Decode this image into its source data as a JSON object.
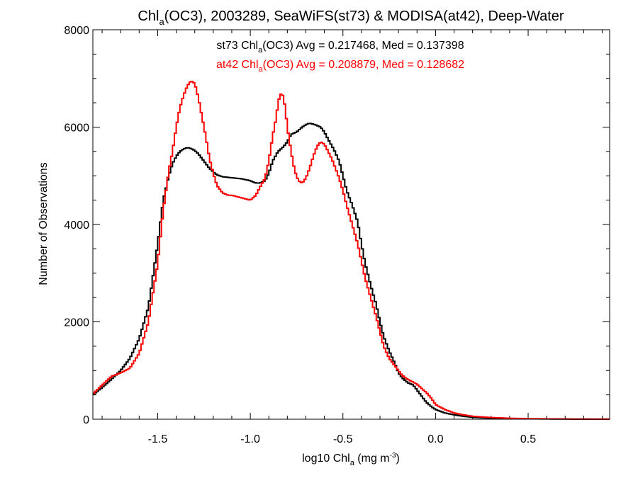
{
  "chart_data": {
    "type": "line",
    "title": {
      "a": "Chl",
      "sub": "a",
      "b": "(OC3), 2003289, SeaWiFS(st73) & MODISA(at42), Deep-Water"
    },
    "xlabel": {
      "a": "log10 Chl",
      "sub": "a",
      "b": " (mg m",
      "sup": "-3",
      "c": ")"
    },
    "ylabel": "Number of Observations",
    "xlim": [
      -1.85,
      0.94
    ],
    "ylim": [
      0,
      8000
    ],
    "x_ticks": [
      "-1.5",
      "-1.0",
      "-0.5",
      "0.0",
      "0.5"
    ],
    "y_ticks": [
      "0",
      "2000",
      "4000",
      "6000",
      "8000"
    ],
    "grid": false,
    "series": [
      {
        "name": "st73",
        "color": "#000000",
        "annotation": {
          "a": "st73 Chl",
          "sub": "a",
          "b": "(OC3) Avg = 0.217468, Med = 0.137398"
        },
        "x": [
          -1.85,
          -1.8,
          -1.75,
          -1.7,
          -1.65,
          -1.6,
          -1.55,
          -1.5,
          -1.47,
          -1.44,
          -1.42,
          -1.4,
          -1.38,
          -1.36,
          -1.34,
          -1.32,
          -1.3,
          -1.28,
          -1.26,
          -1.24,
          -1.22,
          -1.2,
          -1.18,
          -1.15,
          -1.1,
          -1.05,
          -1.0,
          -0.97,
          -0.95,
          -0.92,
          -0.9,
          -0.88,
          -0.85,
          -0.82,
          -0.8,
          -0.78,
          -0.75,
          -0.72,
          -0.7,
          -0.68,
          -0.65,
          -0.62,
          -0.6,
          -0.58,
          -0.55,
          -0.52,
          -0.5,
          -0.48,
          -0.45,
          -0.42,
          -0.4,
          -0.38,
          -0.35,
          -0.32,
          -0.3,
          -0.28,
          -0.25,
          -0.22,
          -0.2,
          -0.18,
          -0.15,
          -0.12,
          -0.1,
          -0.08,
          -0.05,
          -0.02,
          0.0,
          0.05,
          0.1,
          0.15,
          0.2,
          0.3,
          0.4,
          0.5,
          0.6,
          0.7,
          0.8,
          0.94
        ],
        "values": [
          500,
          650,
          820,
          1000,
          1250,
          1650,
          2300,
          3600,
          4500,
          5000,
          5250,
          5400,
          5500,
          5550,
          5580,
          5560,
          5520,
          5450,
          5350,
          5250,
          5150,
          5080,
          5020,
          4980,
          4960,
          4940,
          4900,
          4850,
          4850,
          4900,
          5050,
          5300,
          5500,
          5600,
          5700,
          5850,
          5900,
          6000,
          6050,
          6080,
          6050,
          6000,
          5900,
          5750,
          5550,
          5300,
          5000,
          4700,
          4400,
          4050,
          3600,
          3200,
          2750,
          2350,
          2000,
          1700,
          1400,
          1150,
          950,
          850,
          750,
          700,
          600,
          500,
          350,
          250,
          200,
          130,
          90,
          60,
          40,
          20,
          12,
          8,
          5,
          3,
          2,
          1
        ]
      },
      {
        "name": "at42",
        "color": "#ff0000",
        "annotation": {
          "a": "at42 Chl",
          "sub": "a",
          "b": "(OC3) Avg = 0.208879, Med = 0.128682"
        },
        "x": [
          -1.85,
          -1.8,
          -1.75,
          -1.7,
          -1.65,
          -1.6,
          -1.55,
          -1.5,
          -1.47,
          -1.44,
          -1.42,
          -1.4,
          -1.38,
          -1.36,
          -1.34,
          -1.32,
          -1.3,
          -1.28,
          -1.26,
          -1.24,
          -1.22,
          -1.2,
          -1.18,
          -1.15,
          -1.12,
          -1.1,
          -1.05,
          -1.0,
          -0.97,
          -0.95,
          -0.92,
          -0.9,
          -0.88,
          -0.86,
          -0.85,
          -0.84,
          -0.83,
          -0.82,
          -0.81,
          -0.8,
          -0.78,
          -0.76,
          -0.74,
          -0.72,
          -0.7,
          -0.68,
          -0.66,
          -0.64,
          -0.62,
          -0.6,
          -0.58,
          -0.56,
          -0.54,
          -0.52,
          -0.5,
          -0.48,
          -0.45,
          -0.42,
          -0.4,
          -0.38,
          -0.35,
          -0.32,
          -0.3,
          -0.28,
          -0.25,
          -0.22,
          -0.2,
          -0.18,
          -0.15,
          -0.12,
          -0.1,
          -0.08,
          -0.05,
          -0.02,
          0.0,
          0.05,
          0.1,
          0.15,
          0.2,
          0.3,
          0.4,
          0.5,
          0.6,
          0.7,
          0.8,
          0.94
        ],
        "values": [
          520,
          700,
          880,
          950,
          1050,
          1350,
          2000,
          3200,
          4300,
          5100,
          5500,
          6000,
          6400,
          6650,
          6850,
          6950,
          6900,
          6600,
          6200,
          5800,
          5350,
          5050,
          4800,
          4650,
          4600,
          4600,
          4550,
          4500,
          4600,
          4750,
          4950,
          5300,
          5800,
          6200,
          6500,
          6650,
          6700,
          6600,
          6350,
          6000,
          5500,
          5100,
          4900,
          4850,
          4950,
          5150,
          5400,
          5600,
          5700,
          5650,
          5500,
          5350,
          5150,
          4950,
          4700,
          4400,
          4000,
          3600,
          3250,
          2900,
          2500,
          2100,
          1800,
          1500,
          1250,
          1100,
          1000,
          900,
          820,
          760,
          720,
          650,
          550,
          420,
          300,
          200,
          130,
          90,
          60,
          35,
          20,
          12,
          8,
          5,
          3,
          2
        ]
      }
    ]
  }
}
